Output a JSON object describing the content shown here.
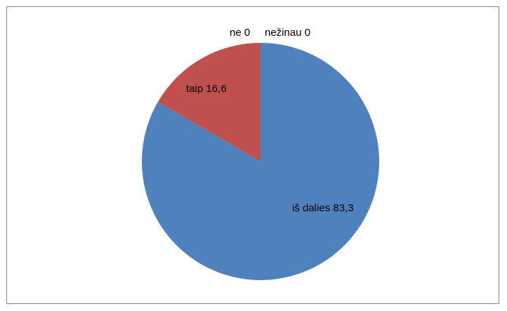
{
  "chart_data": {
    "type": "pie",
    "title": "",
    "slices": [
      {
        "label": "iš dalies",
        "value": 83.3,
        "color": "#4f81bd"
      },
      {
        "label": "taip",
        "value": 16.6,
        "color": "#c0504d"
      },
      {
        "label": "ne",
        "value": 0,
        "color": "#9bbb59"
      },
      {
        "label": "nežinau",
        "value": 0,
        "color": "#8064a2"
      }
    ],
    "data_labels": [
      "iš dalies 83,3",
      "taip 16,6",
      "ne 0",
      "nežinau 0"
    ],
    "legend": "none",
    "start_angle": "12 o'clock, clockwise"
  }
}
